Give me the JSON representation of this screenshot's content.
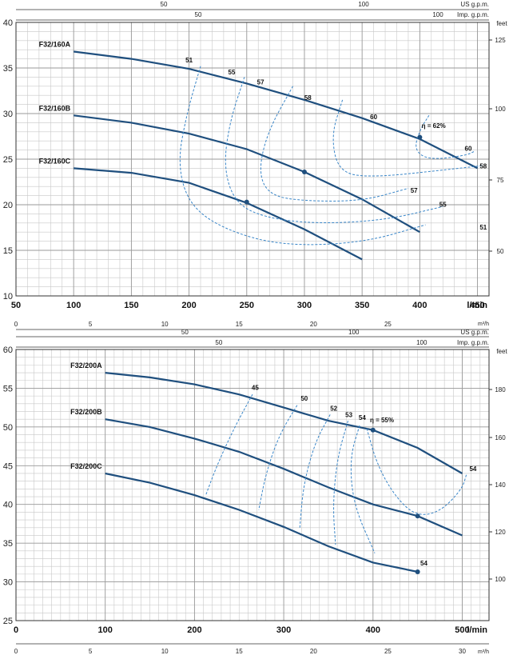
{
  "colors": {
    "curve": "#1f4f7e",
    "iso": "#3a86c8",
    "grid": "#c8c8c8",
    "axis": "#333333"
  },
  "chart_data": [
    {
      "type": "line",
      "title": "",
      "xlabel": "l/min",
      "ylabel": "",
      "xlim": [
        50,
        460
      ],
      "ylim": [
        10,
        40
      ],
      "x_ticks": [
        50,
        100,
        150,
        200,
        250,
        300,
        350,
        400,
        450
      ],
      "y_ticks": [
        10,
        15,
        20,
        25,
        30,
        35,
        40
      ],
      "feet_label": "feet",
      "feet_ticks": [
        125,
        100,
        75,
        50
      ],
      "top_axes": [
        {
          "label": "US g.p.m.",
          "ticks": [
            "50",
            "100"
          ]
        },
        {
          "label": "Imp. g.p.m.",
          "ticks": [
            "50",
            "100"
          ]
        }
      ],
      "series": [
        {
          "name": "F32/160A",
          "x": [
            100,
            150,
            200,
            250,
            300,
            350,
            400,
            450
          ],
          "y": [
            36.8,
            36.0,
            34.9,
            33.3,
            31.5,
            29.5,
            27.2,
            24.0
          ]
        },
        {
          "name": "F32/160B",
          "x": [
            100,
            150,
            200,
            250,
            300,
            350,
            400
          ],
          "y": [
            29.8,
            29.0,
            27.8,
            26.1,
            23.6,
            20.6,
            17.0
          ]
        },
        {
          "name": "F32/160C",
          "x": [
            100,
            150,
            200,
            250,
            300,
            350
          ],
          "y": [
            24.0,
            23.5,
            22.4,
            20.2,
            17.3,
            14.0
          ]
        }
      ],
      "markers": [
        {
          "x": 400,
          "y": 27.4
        },
        {
          "x": 300,
          "y": 23.6
        },
        {
          "x": 250,
          "y": 20.3
        }
      ],
      "efficiency_labels": [
        {
          "text": "51",
          "x": 200,
          "y": 35.6
        },
        {
          "text": "55",
          "x": 237,
          "y": 34.3
        },
        {
          "text": "57",
          "x": 262,
          "y": 33.2
        },
        {
          "text": "58",
          "x": 303,
          "y": 31.5
        },
        {
          "text": "60",
          "x": 360,
          "y": 29.4
        },
        {
          "text": "η = 62%",
          "x": 412,
          "y": 28.4
        },
        {
          "text": "60",
          "x": 442,
          "y": 25.9
        },
        {
          "text": "58",
          "x": 455,
          "y": 24.0
        },
        {
          "text": "57",
          "x": 395,
          "y": 21.3
        },
        {
          "text": "55",
          "x": 420,
          "y": 19.8
        },
        {
          "text": "51",
          "x": 455,
          "y": 17.3
        }
      ],
      "iso_curves": [
        {
          "x": [
            210,
            198,
            190,
            200,
            230,
            280,
            350,
            405
          ],
          "y": [
            35.2,
            30.0,
            24.5,
            20.0,
            17.3,
            15.5,
            15.8,
            17.8
          ]
        },
        {
          "x": [
            248,
            235,
            230,
            240,
            265,
            310,
            370,
            420
          ],
          "y": [
            34.0,
            29.0,
            24.0,
            20.2,
            18.6,
            17.9,
            18.3,
            19.8
          ]
        },
        {
          "x": [
            290,
            268,
            260,
            270,
            300,
            350,
            390
          ],
          "y": [
            33.0,
            28.0,
            23.5,
            21.0,
            20.4,
            20.4,
            21.8
          ]
        },
        {
          "x": [
            333,
            323,
            330,
            360,
            420,
            455
          ],
          "y": [
            31.5,
            27.5,
            23.5,
            23.0,
            23.8,
            24.3
          ]
        },
        {
          "x": [
            408,
            400,
            395,
            408,
            440,
            448
          ],
          "y": [
            29.8,
            28.2,
            26.0,
            24.9,
            25.4,
            25.9
          ]
        }
      ]
    },
    {
      "type": "line",
      "title": "",
      "xlabel": "l/min",
      "ylabel": "",
      "xlim": [
        0,
        530
      ],
      "ylim": [
        25,
        60
      ],
      "x_ticks": [
        0,
        100,
        200,
        300,
        400,
        500
      ],
      "y_ticks": [
        25,
        30,
        35,
        40,
        45,
        50,
        55,
        60
      ],
      "feet_label": "feet",
      "feet_ticks": [
        180,
        160,
        140,
        120,
        100
      ],
      "m3h_label": "m³/h",
      "m3h_ticks": [
        "0",
        "5",
        "10",
        "15",
        "20",
        "25",
        "30"
      ],
      "top_axes": [
        {
          "label": "m³/h",
          "ticks": [
            "0",
            "5",
            "10",
            "15",
            "20",
            "25"
          ]
        },
        {
          "label": "US g.p.m.",
          "ticks": [
            "50",
            "100"
          ]
        },
        {
          "label": "Imp. g.p.m.",
          "ticks": [
            "50",
            "100"
          ]
        }
      ],
      "series": [
        {
          "name": "F32/200A",
          "x": [
            100,
            150,
            200,
            250,
            300,
            350,
            400,
            450,
            500
          ],
          "y": [
            57.0,
            56.4,
            55.5,
            54.2,
            52.5,
            50.8,
            49.6,
            47.3,
            44.0
          ]
        },
        {
          "name": "F32/200B",
          "x": [
            100,
            150,
            200,
            250,
            300,
            350,
            400,
            450,
            500
          ],
          "y": [
            51.0,
            50.0,
            48.5,
            46.8,
            44.6,
            42.2,
            40.0,
            38.5,
            36.0
          ]
        },
        {
          "name": "F32/200C",
          "x": [
            100,
            150,
            200,
            250,
            300,
            350,
            400,
            450
          ],
          "y": [
            44.0,
            42.8,
            41.2,
            39.3,
            37.1,
            34.6,
            32.5,
            31.3
          ]
        }
      ],
      "markers": [
        {
          "x": 400,
          "y": 49.6
        },
        {
          "x": 450,
          "y": 38.5
        },
        {
          "x": 450,
          "y": 31.3
        }
      ],
      "efficiency_labels": [
        {
          "text": "45",
          "x": 268,
          "y": 54.8
        },
        {
          "text": "50",
          "x": 323,
          "y": 53.4
        },
        {
          "text": "52",
          "x": 356,
          "y": 52.1
        },
        {
          "text": "53",
          "x": 373,
          "y": 51.3
        },
        {
          "text": "54",
          "x": 388,
          "y": 50.9
        },
        {
          "text": "η = 55%",
          "x": 410,
          "y": 50.6
        },
        {
          "text": "54",
          "x": 512,
          "y": 44.3
        },
        {
          "text": "54",
          "x": 457,
          "y": 32.1
        }
      ],
      "iso_curves": [
        {
          "x": [
            265,
            245,
            225,
            213
          ],
          "y": [
            54.2,
            50.0,
            45.0,
            41.3
          ]
        },
        {
          "x": [
            315,
            295,
            280,
            272
          ],
          "y": [
            52.8,
            49.0,
            44.0,
            39.3
          ]
        },
        {
          "x": [
            352,
            335,
            322,
            318
          ],
          "y": [
            51.6,
            48.0,
            42.5,
            37.0
          ]
        },
        {
          "x": [
            372,
            360,
            355,
            358
          ],
          "y": [
            50.8,
            46.0,
            40.0,
            34.8
          ]
        },
        {
          "x": [
            385,
            374,
            378,
            402
          ],
          "y": [
            50.2,
            46.0,
            40.0,
            33.7
          ]
        },
        {
          "x": [
            393,
            405,
            425,
            448,
            475,
            500,
            505
          ],
          "y": [
            49.8,
            45.0,
            41.0,
            38.5,
            39.0,
            42.0,
            44.0
          ]
        }
      ]
    }
  ]
}
